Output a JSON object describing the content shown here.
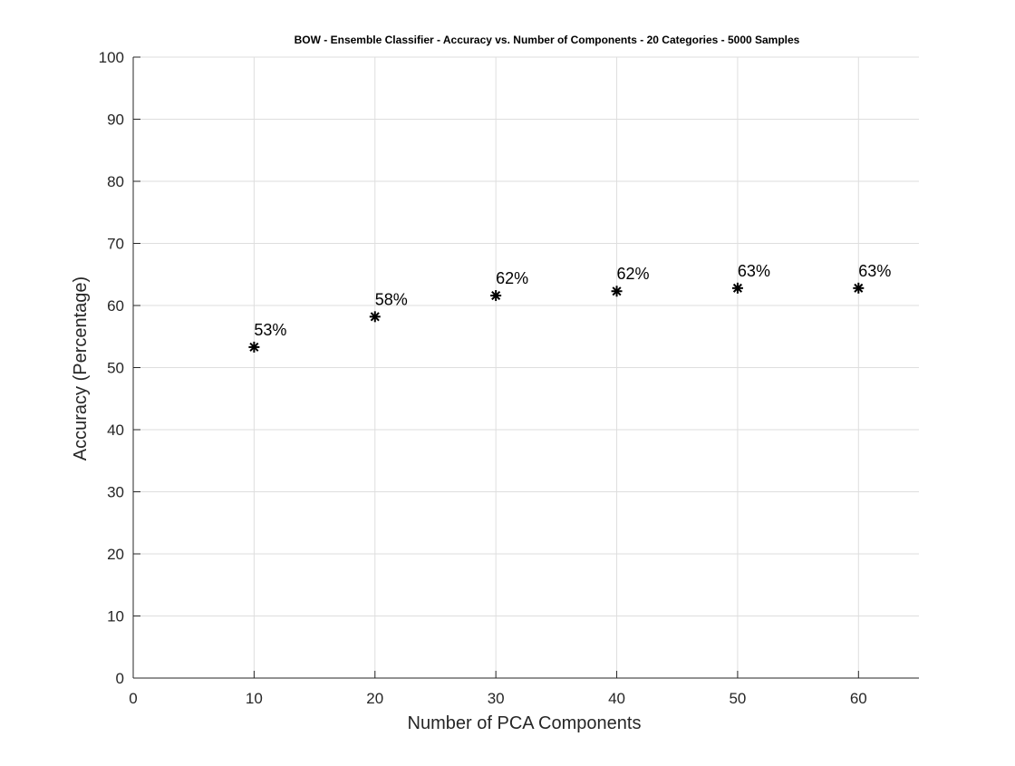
{
  "chart_data": {
    "type": "scatter",
    "title": "BOW - Ensemble Classifier - Accuracy vs. Number of Components - 20 Categories - 5000 Samples",
    "xlabel": "Number of PCA Components",
    "ylabel": "Accuracy (Percentage)",
    "xlim": [
      0,
      65
    ],
    "ylim": [
      0,
      100
    ],
    "xticks": [
      0,
      10,
      20,
      30,
      40,
      50,
      60
    ],
    "yticks": [
      0,
      10,
      20,
      30,
      40,
      50,
      60,
      70,
      80,
      90,
      100
    ],
    "grid": true,
    "marker": "asterisk",
    "marker_color": "#000000",
    "x": [
      10,
      20,
      30,
      40,
      50,
      60
    ],
    "y": [
      53.3,
      58.2,
      61.6,
      62.3,
      62.8,
      62.8
    ],
    "data_labels": [
      "53%",
      "58%",
      "62%",
      "62%",
      "63%",
      "63%"
    ]
  }
}
